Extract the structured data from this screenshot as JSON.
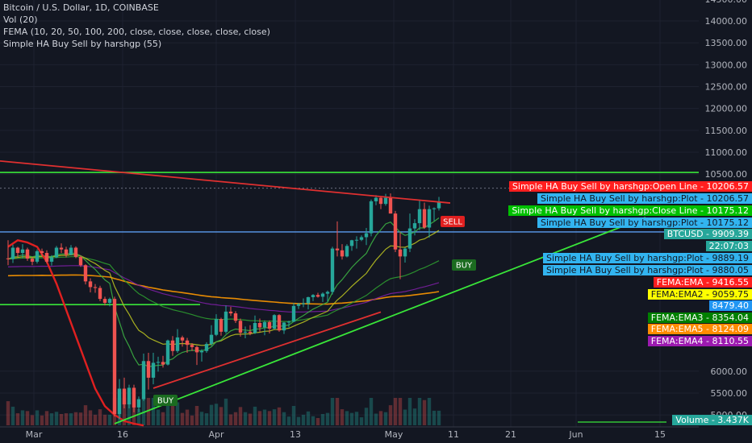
{
  "header": {
    "line1": "Bitcoin / U.S. Dollar, 1D, COINBASE",
    "line2": "Vol (20)",
    "line3": "FEMA (10, 20, 50, 100, 200, close, close, close, close, close)",
    "line4": "Simple HA Buy Sell by harshgp (55)"
  },
  "chart_data": {
    "type": "candlestick",
    "x_axis": {
      "labels": [
        "Mar",
        "16",
        "Apr",
        "13",
        "May",
        "11",
        "21",
        "Jun",
        "15"
      ]
    },
    "y_axis": {
      "ylim": [
        4800,
        14500
      ],
      "ticks": [
        "14500.00",
        "14000.00",
        "13500.00",
        "13000.00",
        "12500.00",
        "12000.00",
        "11500.00",
        "11000.00",
        "10500.00",
        "6000.00",
        "5500.00",
        "5000.00"
      ]
    },
    "candles": [
      [
        8575,
        8990,
        8420,
        8560
      ],
      [
        8560,
        8890,
        8470,
        8820
      ],
      [
        8820,
        8840,
        8600,
        8700
      ],
      [
        8700,
        8900,
        8580,
        8780
      ],
      [
        8780,
        8820,
        8520,
        8570
      ],
      [
        8570,
        8610,
        8420,
        8500
      ],
      [
        8500,
        8780,
        8460,
        8740
      ],
      [
        8740,
        8800,
        8620,
        8700
      ],
      [
        8700,
        8760,
        8460,
        8500
      ],
      [
        8500,
        8650,
        8410,
        8600
      ],
      [
        8600,
        8860,
        8580,
        8820
      ],
      [
        8820,
        8920,
        8700,
        8780
      ],
      [
        8780,
        8840,
        8600,
        8660
      ],
      [
        8660,
        8880,
        8640,
        8820
      ],
      [
        8820,
        8850,
        8580,
        8610
      ],
      [
        8610,
        8640,
        8380,
        8420
      ],
      [
        8420,
        8440,
        7980,
        8050
      ],
      [
        8050,
        8120,
        7800,
        7920
      ],
      [
        7920,
        7990,
        7790,
        7900
      ],
      [
        7900,
        7950,
        7600,
        7650
      ],
      [
        7650,
        7700,
        7500,
        7560
      ],
      [
        7560,
        7680,
        7480,
        7650
      ],
      [
        7650,
        7700,
        4960,
        5020
      ],
      [
        5020,
        5820,
        4900,
        5600
      ],
      [
        5600,
        5850,
        5150,
        5240
      ],
      [
        5240,
        5690,
        5150,
        5620
      ],
      [
        5620,
        5690,
        5060,
        5170
      ],
      [
        5170,
        5420,
        5060,
        5360
      ],
      [
        5360,
        6400,
        5320,
        6230
      ],
      [
        6230,
        6420,
        5580,
        5850
      ],
      [
        5850,
        6420,
        5700,
        6190
      ],
      [
        6190,
        6330,
        5990,
        6210
      ],
      [
        6210,
        6350,
        6080,
        6150
      ],
      [
        6150,
        6720,
        6130,
        6700
      ],
      [
        6700,
        6800,
        6350,
        6460
      ],
      [
        6460,
        6960,
        6420,
        6770
      ],
      [
        6770,
        6810,
        6560,
        6700
      ],
      [
        6700,
        6760,
        6420,
        6600
      ],
      [
        6600,
        6640,
        6460,
        6550
      ],
      [
        6550,
        6580,
        6140,
        6430
      ],
      [
        6430,
        6500,
        6220,
        6460
      ],
      [
        6460,
        6660,
        6420,
        6620
      ],
      [
        6620,
        7050,
        6580,
        6830
      ],
      [
        6830,
        7300,
        6800,
        7190
      ],
      [
        7190,
        7220,
        6810,
        6900
      ],
      [
        6900,
        7500,
        6860,
        7360
      ],
      [
        7360,
        7470,
        7260,
        7320
      ],
      [
        7320,
        7370,
        7100,
        7150
      ],
      [
        7150,
        7200,
        6790,
        6880
      ],
      [
        6880,
        7020,
        6750,
        6900
      ],
      [
        6900,
        7050,
        6820,
        6870
      ],
      [
        6870,
        7270,
        6850,
        7100
      ],
      [
        7100,
        7200,
        6900,
        7000
      ],
      [
        7000,
        7160,
        6820,
        7120
      ],
      [
        7120,
        7160,
        6860,
        6970
      ],
      [
        6970,
        7300,
        6950,
        7280
      ],
      [
        7280,
        7300,
        6900,
        6930
      ],
      [
        6930,
        7120,
        6850,
        7110
      ],
      [
        7110,
        7150,
        7000,
        7130
      ],
      [
        7130,
        7560,
        7120,
        7490
      ],
      [
        7490,
        7560,
        7420,
        7530
      ],
      [
        7530,
        7660,
        7460,
        7550
      ],
      [
        7550,
        7700,
        7410,
        7690
      ],
      [
        7690,
        7760,
        7600,
        7740
      ],
      [
        7740,
        7790,
        7680,
        7700
      ],
      [
        7700,
        7800,
        7580,
        7770
      ],
      [
        7770,
        7840,
        7590,
        7810
      ],
      [
        7810,
        8840,
        7750,
        8800
      ],
      [
        8800,
        9420,
        8620,
        8760
      ],
      [
        8760,
        8900,
        8550,
        8620
      ],
      [
        8620,
        8900,
        8600,
        8860
      ],
      [
        8860,
        9000,
        8750,
        8990
      ],
      [
        8990,
        9080,
        8800,
        9000
      ],
      [
        9000,
        9100,
        8970,
        9060
      ],
      [
        9060,
        9270,
        8880,
        9150
      ],
      [
        9150,
        9920,
        9080,
        9880
      ],
      [
        9880,
        10020,
        9790,
        9960
      ],
      [
        9960,
        10000,
        9700,
        9820
      ],
      [
        9820,
        10050,
        9780,
        9960
      ],
      [
        9960,
        10060,
        9600,
        9600
      ],
      [
        9600,
        9660,
        8720,
        8780
      ],
      [
        8780,
        9170,
        8100,
        8620
      ],
      [
        8620,
        8820,
        8480,
        8800
      ],
      [
        8800,
        9600,
        8720,
        9260
      ],
      [
        9260,
        9470,
        9100,
        9380
      ],
      [
        9380,
        9920,
        9220,
        9700
      ],
      [
        9700,
        9850,
        9250,
        9280
      ],
      [
        9280,
        9780,
        9050,
        9700
      ],
      [
        9700,
        9740,
        9430,
        9720
      ],
      [
        9720,
        9980,
        9670,
        9880
      ]
    ],
    "lines": {
      "fema_ema": [
        8840,
        8990,
        8940,
        8840,
        8500,
        8000,
        7400,
        6800,
        6200,
        5600,
        5200,
        5000,
        4860,
        4800,
        4760
      ],
      "resistance_red": [
        [
          9,
          10440
        ],
        [
          89,
          9840
        ]
      ],
      "support_red": [
        [
          30,
          5610
        ],
        [
          77,
          7350
        ]
      ],
      "support_green": [
        [
          24,
          4800
        ],
        [
          89,
          8230
        ]
      ],
      "hline_green_top": 10540,
      "hline_green_mid": 7520,
      "hline_blue": 9180
    },
    "signals": [
      {
        "label": "SELL",
        "price": 9540
      },
      {
        "label": "BUY",
        "price": 9090
      },
      {
        "label": "BUY",
        "price": 5470
      }
    ],
    "price_labels": [
      {
        "text": "Simple HA Buy Sell by harshgp:Open Line",
        "value": "10206.57",
        "color": "#ff1f1f",
        "text_color": "#ffffff"
      },
      {
        "text": "Simple HA Buy Sell by harshgp:Plot",
        "value": "10206.57",
        "color": "#32b4f0",
        "text_color": "#131722"
      },
      {
        "text": "Simple HA Buy Sell by harshgp:Close Line",
        "value": "10175.12",
        "color": "#00c000",
        "text_color": "#ffffff"
      },
      {
        "text": "Simple HA Buy Sell by harshgp:Plot",
        "value": "10175.12",
        "color": "#32b4f0",
        "text_color": "#131722"
      },
      {
        "text": "BTCUSD",
        "value": "9909.39",
        "color": "#26a69a",
        "text_color": "#ffffff"
      },
      {
        "text": "",
        "value": "22:07:03",
        "color": "#26a69a",
        "text_color": "#ffffff"
      },
      {
        "text": "Simple HA Buy Sell by harshgp:Plot",
        "value": "9889.19",
        "color": "#32b4f0",
        "text_color": "#131722"
      },
      {
        "text": "Simple HA Buy Sell by harshgp:Plot",
        "value": "9880.05",
        "color": "#32b4f0",
        "text_color": "#131722"
      },
      {
        "text": "FEMA:EMA",
        "value": "9416.55",
        "color": "#ff1f1f",
        "text_color": "#ffffff"
      },
      {
        "text": "FEMA:EMA2",
        "value": "9059.75",
        "color": "#ffff00",
        "text_color": "#131722"
      },
      {
        "text": "",
        "value": "8479.40",
        "color": "#2196f3",
        "text_color": "#ffffff"
      },
      {
        "text": "FEMA:EMA3",
        "value": "8354.04",
        "color": "#008000",
        "text_color": "#ffffff"
      },
      {
        "text": "FEMA:EMA5",
        "value": "8124.09",
        "color": "#ff8c00",
        "text_color": "#ffffff"
      },
      {
        "text": "FEMA:EMA4",
        "value": "8110.55",
        "color": "#9c1ab0",
        "text_color": "#ffffff"
      },
      {
        "text": "Volume",
        "value": "3.437K",
        "color": "#26a69a",
        "text_color": "#ffffff"
      }
    ],
    "colors": {
      "up": "#26a69a",
      "down": "#ef5350",
      "background": "#131722",
      "fema_ema": "#e02020",
      "ema2": "#b8c020",
      "ema3": "#2e9b30",
      "ema4": "#7b1fa2",
      "ema5": "#ff9800",
      "green_line": "#39e639",
      "red_line": "#e03030",
      "blue_line": "#5b9cf0"
    }
  }
}
